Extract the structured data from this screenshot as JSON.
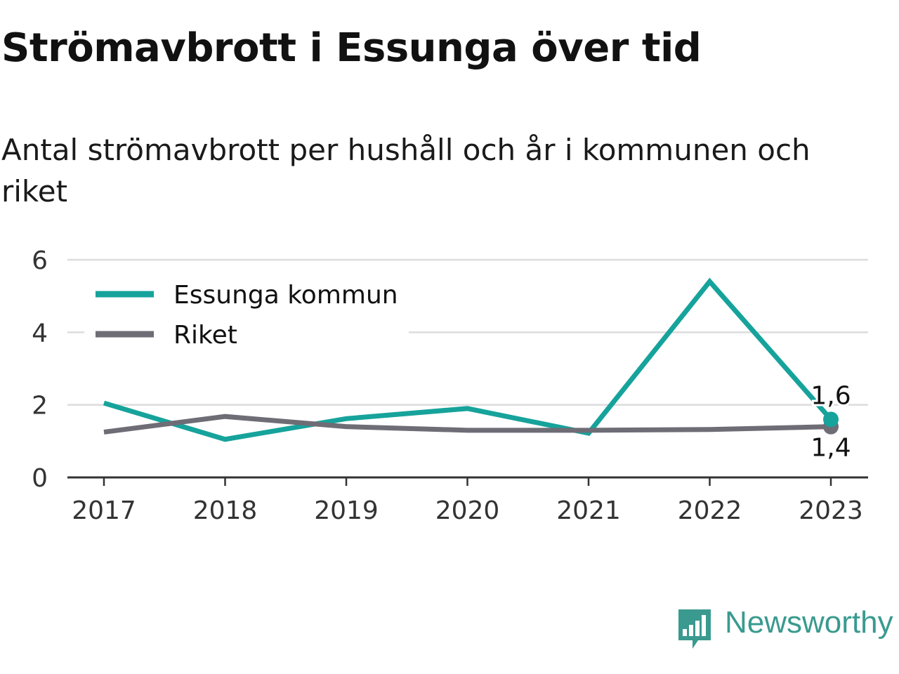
{
  "title": "Strömavbrott i Essunga över tid",
  "subtitle": "Antal strömavbrott per hushåll och år i kommunen och riket",
  "colors": {
    "essunga": "#16a39b",
    "riket": "#6e6d76",
    "grid": "#dcdcdc",
    "axis": "#333333",
    "brand": "#3a9a8f"
  },
  "brand": {
    "name": "Newsworthy",
    "icon": "bar-chart-speech-bubble-icon"
  },
  "chart_data": {
    "type": "line",
    "x": [
      "2017",
      "2018",
      "2019",
      "2020",
      "2021",
      "2022",
      "2023"
    ],
    "series": [
      {
        "name": "Essunga kommun",
        "color": "#16a39b",
        "values": [
          2.05,
          1.05,
          1.62,
          1.9,
          1.22,
          5.4,
          1.6
        ],
        "end_label": "1,6"
      },
      {
        "name": "Riket",
        "color": "#6e6d76",
        "values": [
          1.25,
          1.68,
          1.4,
          1.3,
          1.3,
          1.32,
          1.4
        ],
        "end_label": "1,4"
      }
    ],
    "y_ticks": [
      "0",
      "2",
      "4",
      "6"
    ],
    "ylim": [
      0,
      6
    ],
    "grid": true,
    "legend_position": "top-left"
  }
}
